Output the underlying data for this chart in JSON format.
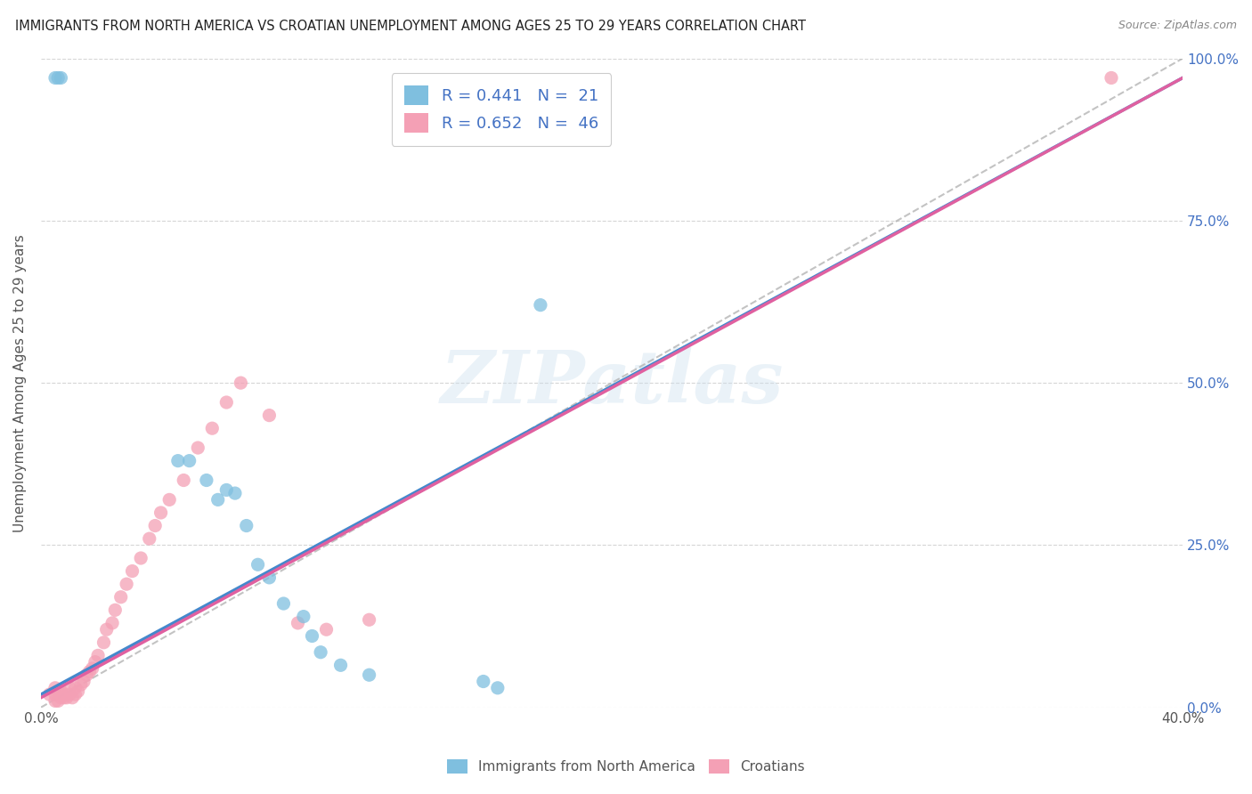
{
  "title": "IMMIGRANTS FROM NORTH AMERICA VS CROATIAN UNEMPLOYMENT AMONG AGES 25 TO 29 YEARS CORRELATION CHART",
  "source": "Source: ZipAtlas.com",
  "ylabel": "Unemployment Among Ages 25 to 29 years",
  "xlim": [
    0.0,
    0.4
  ],
  "ylim": [
    0.0,
    1.0
  ],
  "xtick_positions": [
    0.0,
    0.1,
    0.2,
    0.3,
    0.4
  ],
  "xtick_labels": [
    "0.0%",
    "",
    "",
    "",
    "40.0%"
  ],
  "right_ytick_positions": [
    0.0,
    0.25,
    0.5,
    0.75,
    1.0
  ],
  "right_ytick_labels": [
    "0.0%",
    "25.0%",
    "50.0%",
    "75.0%",
    "100.0%"
  ],
  "blue_R": "R = 0.441",
  "blue_N": "N =  21",
  "pink_R": "R = 0.652",
  "pink_N": "N =  46",
  "legend_blue_label": "Immigrants from North America",
  "legend_pink_label": "Croatians",
  "watermark_text": "ZIPatlas",
  "blue_scatter_color": "#7fbfdf",
  "pink_scatter_color": "#f4a0b5",
  "blue_line_color": "#4488cc",
  "pink_line_color": "#e060a0",
  "diagonal_color": "#aaaaaa",
  "title_color": "#222222",
  "label_color": "#4472c4",
  "axis_text_color": "#555555",
  "background_color": "#ffffff",
  "grid_color": "#cccccc",
  "note_color": "#888888",
  "blue_scatter_x": [
    0.005,
    0.006,
    0.007,
    0.048,
    0.052,
    0.058,
    0.062,
    0.065,
    0.068,
    0.072,
    0.076,
    0.08,
    0.085,
    0.092,
    0.095,
    0.098,
    0.105,
    0.115,
    0.155,
    0.16,
    0.175
  ],
  "blue_scatter_y": [
    0.97,
    0.97,
    0.97,
    0.38,
    0.38,
    0.35,
    0.32,
    0.335,
    0.33,
    0.28,
    0.22,
    0.2,
    0.16,
    0.14,
    0.11,
    0.085,
    0.065,
    0.05,
    0.04,
    0.03,
    0.62
  ],
  "pink_scatter_x": [
    0.003,
    0.005,
    0.005,
    0.005,
    0.006,
    0.006,
    0.007,
    0.007,
    0.008,
    0.008,
    0.009,
    0.01,
    0.01,
    0.011,
    0.012,
    0.012,
    0.013,
    0.014,
    0.015,
    0.016,
    0.017,
    0.018,
    0.019,
    0.02,
    0.022,
    0.023,
    0.025,
    0.026,
    0.028,
    0.03,
    0.032,
    0.035,
    0.038,
    0.04,
    0.042,
    0.045,
    0.05,
    0.055,
    0.06,
    0.065,
    0.07,
    0.08,
    0.09,
    0.1,
    0.115,
    0.375
  ],
  "pink_scatter_y": [
    0.02,
    0.01,
    0.02,
    0.03,
    0.01,
    0.025,
    0.015,
    0.025,
    0.015,
    0.02,
    0.015,
    0.02,
    0.03,
    0.015,
    0.02,
    0.03,
    0.025,
    0.035,
    0.04,
    0.05,
    0.055,
    0.06,
    0.07,
    0.08,
    0.1,
    0.12,
    0.13,
    0.15,
    0.17,
    0.19,
    0.21,
    0.23,
    0.26,
    0.28,
    0.3,
    0.32,
    0.35,
    0.4,
    0.43,
    0.47,
    0.5,
    0.45,
    0.13,
    0.12,
    0.135,
    0.97
  ],
  "blue_line": {
    "x0": 0.0,
    "x1": 0.4,
    "y0": 0.02,
    "y1": 0.97
  },
  "pink_line": {
    "x0": 0.0,
    "x1": 0.4,
    "y0": 0.015,
    "y1": 0.97
  },
  "diag_line": {
    "x0": 0.0,
    "x1": 0.4,
    "y0": 0.0,
    "y1": 1.0
  }
}
